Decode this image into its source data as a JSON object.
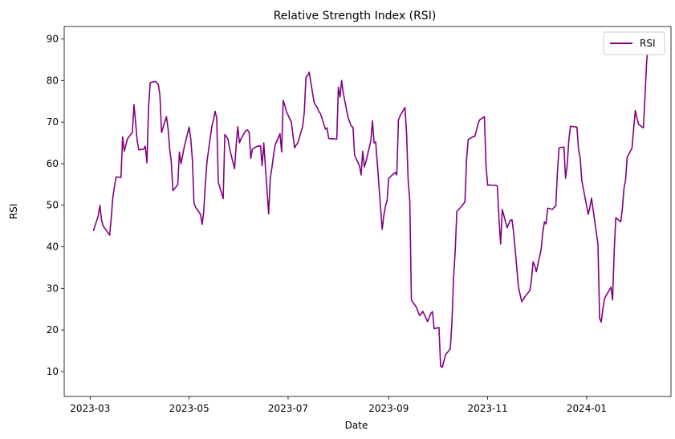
{
  "chart_data": {
    "type": "line",
    "title": "Relative Strength Index (RSI)",
    "xlabel": "Date",
    "ylabel": "RSI",
    "xlim": [
      "2023-02-13",
      "2024-02-22"
    ],
    "ylim": [
      4,
      93
    ],
    "xticks": [
      {
        "date": "2023-03-01",
        "label": "2023-03"
      },
      {
        "date": "2023-05-01",
        "label": "2023-05"
      },
      {
        "date": "2023-07-01",
        "label": "2023-07"
      },
      {
        "date": "2023-09-01",
        "label": "2023-09"
      },
      {
        "date": "2023-11-01",
        "label": "2023-11"
      },
      {
        "date": "2024-01-01",
        "label": "2024-01"
      }
    ],
    "yticks": [
      10,
      20,
      30,
      40,
      50,
      60,
      70,
      80,
      90
    ],
    "grid": false,
    "legend": {
      "position": "top-right"
    },
    "series": [
      {
        "name": "RSI",
        "color": "#800080",
        "points": [
          [
            "2023-03-03",
            43.8
          ],
          [
            "2023-03-06",
            47.5
          ],
          [
            "2023-03-07",
            50.0
          ],
          [
            "2023-03-08",
            46.5
          ],
          [
            "2023-03-09",
            45.0
          ],
          [
            "2023-03-10",
            44.5
          ],
          [
            "2023-03-13",
            42.8
          ],
          [
            "2023-03-14",
            47.0
          ],
          [
            "2023-03-15",
            52.0
          ],
          [
            "2023-03-16",
            54.5
          ],
          [
            "2023-03-17",
            56.8
          ],
          [
            "2023-03-20",
            56.7
          ],
          [
            "2023-03-21",
            66.5
          ],
          [
            "2023-03-22",
            63.0
          ],
          [
            "2023-03-23",
            64.5
          ],
          [
            "2023-03-24",
            66.0
          ],
          [
            "2023-03-27",
            67.5
          ],
          [
            "2023-03-28",
            74.2
          ],
          [
            "2023-03-29",
            70.0
          ],
          [
            "2023-03-30",
            65.5
          ],
          [
            "2023-03-31",
            63.3
          ],
          [
            "2023-04-03",
            63.5
          ],
          [
            "2023-04-04",
            64.2
          ],
          [
            "2023-04-05",
            60.2
          ],
          [
            "2023-04-06",
            73.5
          ],
          [
            "2023-04-07",
            79.5
          ],
          [
            "2023-04-10",
            79.8
          ],
          [
            "2023-04-11",
            79.5
          ],
          [
            "2023-04-12",
            79.0
          ],
          [
            "2023-04-13",
            76.5
          ],
          [
            "2023-04-14",
            67.5
          ],
          [
            "2023-04-17",
            71.3
          ],
          [
            "2023-04-18",
            68.5
          ],
          [
            "2023-04-19",
            63.5
          ],
          [
            "2023-04-20",
            60.5
          ],
          [
            "2023-04-21",
            53.5
          ],
          [
            "2023-04-24",
            55.0
          ],
          [
            "2023-04-25",
            62.8
          ],
          [
            "2023-04-26",
            60.0
          ],
          [
            "2023-04-27",
            62.0
          ],
          [
            "2023-04-28",
            64.0
          ],
          [
            "2023-05-01",
            68.8
          ],
          [
            "2023-05-02",
            66.0
          ],
          [
            "2023-05-03",
            61.0
          ],
          [
            "2023-05-04",
            50.5
          ],
          [
            "2023-05-05",
            49.5
          ],
          [
            "2023-05-08",
            47.8
          ],
          [
            "2023-05-09",
            45.4
          ],
          [
            "2023-05-10",
            48.5
          ],
          [
            "2023-05-11",
            55.0
          ],
          [
            "2023-05-12",
            60.5
          ],
          [
            "2023-05-15",
            69.0
          ],
          [
            "2023-05-16",
            70.5
          ],
          [
            "2023-05-17",
            72.6
          ],
          [
            "2023-05-18",
            71.0
          ],
          [
            "2023-05-19",
            55.5
          ],
          [
            "2023-05-22",
            51.6
          ],
          [
            "2023-05-23",
            67.0
          ],
          [
            "2023-05-24",
            66.5
          ],
          [
            "2023-05-25",
            65.8
          ],
          [
            "2023-05-26",
            63.5
          ],
          [
            "2023-05-29",
            58.8
          ],
          [
            "2023-05-30",
            64.5
          ],
          [
            "2023-05-31",
            68.9
          ],
          [
            "2023-06-01",
            65.0
          ],
          [
            "2023-06-02",
            66.0
          ],
          [
            "2023-06-05",
            68.0
          ],
          [
            "2023-06-06",
            68.1
          ],
          [
            "2023-06-07",
            67.5
          ],
          [
            "2023-06-08",
            61.3
          ],
          [
            "2023-06-09",
            63.5
          ],
          [
            "2023-06-12",
            64.2
          ],
          [
            "2023-06-13",
            64.2
          ],
          [
            "2023-06-14",
            64.3
          ],
          [
            "2023-06-15",
            59.5
          ],
          [
            "2023-06-16",
            65.0
          ],
          [
            "2023-06-19",
            47.9
          ],
          [
            "2023-06-20",
            56.5
          ],
          [
            "2023-06-21",
            59.0
          ],
          [
            "2023-06-22",
            62.0
          ],
          [
            "2023-06-23",
            64.5
          ],
          [
            "2023-06-26",
            67.2
          ],
          [
            "2023-06-27",
            62.8
          ],
          [
            "2023-06-28",
            75.2
          ],
          [
            "2023-06-29",
            74.0
          ],
          [
            "2023-06-30",
            72.5
          ],
          [
            "2023-07-03",
            70.0
          ],
          [
            "2023-07-05",
            63.8
          ],
          [
            "2023-07-06",
            64.5
          ],
          [
            "2023-07-07",
            65.0
          ],
          [
            "2023-07-10",
            69.0
          ],
          [
            "2023-07-11",
            72.5
          ],
          [
            "2023-07-12",
            80.8
          ],
          [
            "2023-07-13",
            81.2
          ],
          [
            "2023-07-14",
            82.0
          ],
          [
            "2023-07-17",
            74.8
          ],
          [
            "2023-07-18",
            74.0
          ],
          [
            "2023-07-19",
            73.5
          ],
          [
            "2023-07-20",
            72.5
          ],
          [
            "2023-07-21",
            72.0
          ],
          [
            "2023-07-24",
            68.3
          ],
          [
            "2023-07-25",
            68.6
          ],
          [
            "2023-07-26",
            66.1
          ],
          [
            "2023-07-27",
            66.0
          ],
          [
            "2023-07-28",
            66.0
          ],
          [
            "2023-07-31",
            65.9
          ],
          [
            "2023-08-01",
            78.4
          ],
          [
            "2023-08-02",
            76.0
          ],
          [
            "2023-08-03",
            80.0
          ],
          [
            "2023-08-04",
            77.0
          ],
          [
            "2023-08-07",
            71.0
          ],
          [
            "2023-08-08",
            70.0
          ],
          [
            "2023-08-09",
            69.0
          ],
          [
            "2023-08-10",
            68.8
          ],
          [
            "2023-08-11",
            62.0
          ],
          [
            "2023-08-14",
            59.5
          ],
          [
            "2023-08-15",
            57.3
          ],
          [
            "2023-08-16",
            63.0
          ],
          [
            "2023-08-17",
            59.2
          ],
          [
            "2023-08-18",
            60.5
          ],
          [
            "2023-08-21",
            65.5
          ],
          [
            "2023-08-22",
            70.3
          ],
          [
            "2023-08-23",
            65.0
          ],
          [
            "2023-08-24",
            65.2
          ],
          [
            "2023-08-25",
            60.0
          ],
          [
            "2023-08-28",
            44.2
          ],
          [
            "2023-08-29",
            47.5
          ],
          [
            "2023-08-30",
            49.8
          ],
          [
            "2023-08-31",
            51.0
          ],
          [
            "2023-09-01",
            56.5
          ],
          [
            "2023-09-05",
            57.9
          ],
          [
            "2023-09-06",
            57.3
          ],
          [
            "2023-09-07",
            70.5
          ],
          [
            "2023-09-08",
            71.5
          ],
          [
            "2023-09-11",
            73.5
          ],
          [
            "2023-09-12",
            67.5
          ],
          [
            "2023-09-13",
            56.0
          ],
          [
            "2023-09-14",
            51.0
          ],
          [
            "2023-09-15",
            27.2
          ],
          [
            "2023-09-18",
            25.5
          ],
          [
            "2023-09-19",
            24.5
          ],
          [
            "2023-09-20",
            23.5
          ],
          [
            "2023-09-21",
            23.8
          ],
          [
            "2023-09-22",
            24.5
          ],
          [
            "2023-09-25",
            22.0
          ],
          [
            "2023-09-26",
            23.0
          ],
          [
            "2023-09-27",
            24.0
          ],
          [
            "2023-09-28",
            24.4
          ],
          [
            "2023-09-29",
            20.3
          ],
          [
            "2023-10-02",
            20.6
          ],
          [
            "2023-10-03",
            11.3
          ],
          [
            "2023-10-04",
            11.0
          ],
          [
            "2023-10-05",
            12.5
          ],
          [
            "2023-10-06",
            14.0
          ],
          [
            "2023-10-09",
            15.5
          ],
          [
            "2023-10-10",
            22.0
          ],
          [
            "2023-10-11",
            32.5
          ],
          [
            "2023-10-12",
            39.0
          ],
          [
            "2023-10-13",
            48.5
          ],
          [
            "2023-10-16",
            49.8
          ],
          [
            "2023-10-17",
            50.3
          ],
          [
            "2023-10-18",
            50.8
          ],
          [
            "2023-10-19",
            61.0
          ],
          [
            "2023-10-20",
            65.8
          ],
          [
            "2023-10-23",
            66.5
          ],
          [
            "2023-10-24",
            66.5
          ],
          [
            "2023-10-25",
            67.8
          ],
          [
            "2023-10-26",
            69.5
          ],
          [
            "2023-10-27",
            70.5
          ],
          [
            "2023-10-30",
            71.3
          ],
          [
            "2023-10-31",
            59.5
          ],
          [
            "2023-11-01",
            54.8
          ],
          [
            "2023-11-02",
            54.9
          ],
          [
            "2023-11-03",
            54.8
          ],
          [
            "2023-11-06",
            54.8
          ],
          [
            "2023-11-07",
            54.6
          ],
          [
            "2023-11-08",
            46.5
          ],
          [
            "2023-11-09",
            40.7
          ],
          [
            "2023-11-10",
            49.0
          ],
          [
            "2023-11-13",
            44.6
          ],
          [
            "2023-11-14",
            45.5
          ],
          [
            "2023-11-15",
            46.4
          ],
          [
            "2023-11-16",
            46.5
          ],
          [
            "2023-11-17",
            43.5
          ],
          [
            "2023-11-20",
            30.3
          ],
          [
            "2023-11-21",
            28.5
          ],
          [
            "2023-11-22",
            26.8
          ],
          [
            "2023-11-24",
            28.0
          ],
          [
            "2023-11-27",
            29.5
          ],
          [
            "2023-11-28",
            32.0
          ],
          [
            "2023-11-29",
            36.4
          ],
          [
            "2023-11-30",
            35.5
          ],
          [
            "2023-12-01",
            34.0
          ],
          [
            "2023-12-04",
            39.5
          ],
          [
            "2023-12-05",
            43.5
          ],
          [
            "2023-12-06",
            46.0
          ],
          [
            "2023-12-07",
            45.5
          ],
          [
            "2023-12-08",
            49.3
          ],
          [
            "2023-12-11",
            49.0
          ],
          [
            "2023-12-12",
            49.5
          ],
          [
            "2023-12-13",
            49.8
          ],
          [
            "2023-12-14",
            58.0
          ],
          [
            "2023-12-15",
            63.8
          ],
          [
            "2023-12-18",
            64.0
          ],
          [
            "2023-12-19",
            56.5
          ],
          [
            "2023-12-20",
            59.5
          ],
          [
            "2023-12-21",
            65.5
          ],
          [
            "2023-12-22",
            69.0
          ],
          [
            "2023-12-26",
            68.8
          ],
          [
            "2023-12-27",
            63.5
          ],
          [
            "2023-12-28",
            61.5
          ],
          [
            "2023-12-29",
            56.0
          ],
          [
            "2024-01-02",
            47.8
          ],
          [
            "2024-01-03",
            49.5
          ],
          [
            "2024-01-04",
            51.7
          ],
          [
            "2024-01-05",
            49.0
          ],
          [
            "2024-01-08",
            40.5
          ],
          [
            "2024-01-09",
            22.8
          ],
          [
            "2024-01-10",
            21.9
          ],
          [
            "2024-01-11",
            25.0
          ],
          [
            "2024-01-12",
            27.5
          ],
          [
            "2024-01-16",
            30.3
          ],
          [
            "2024-01-17",
            27.2
          ],
          [
            "2024-01-18",
            39.0
          ],
          [
            "2024-01-19",
            47.0
          ],
          [
            "2024-01-22",
            46.0
          ],
          [
            "2024-01-23",
            49.0
          ],
          [
            "2024-01-24",
            54.0
          ],
          [
            "2024-01-25",
            56.0
          ],
          [
            "2024-01-26",
            61.5
          ],
          [
            "2024-01-29",
            63.8
          ],
          [
            "2024-01-30",
            68.5
          ],
          [
            "2024-01-31",
            72.8
          ],
          [
            "2024-02-01",
            71.0
          ],
          [
            "2024-02-02",
            69.5
          ],
          [
            "2024-02-05",
            68.6
          ],
          [
            "2024-02-06",
            76.5
          ],
          [
            "2024-02-07",
            84.5
          ],
          [
            "2024-02-08",
            88.9
          ],
          [
            "2024-02-09",
            88.8
          ]
        ]
      }
    ]
  }
}
